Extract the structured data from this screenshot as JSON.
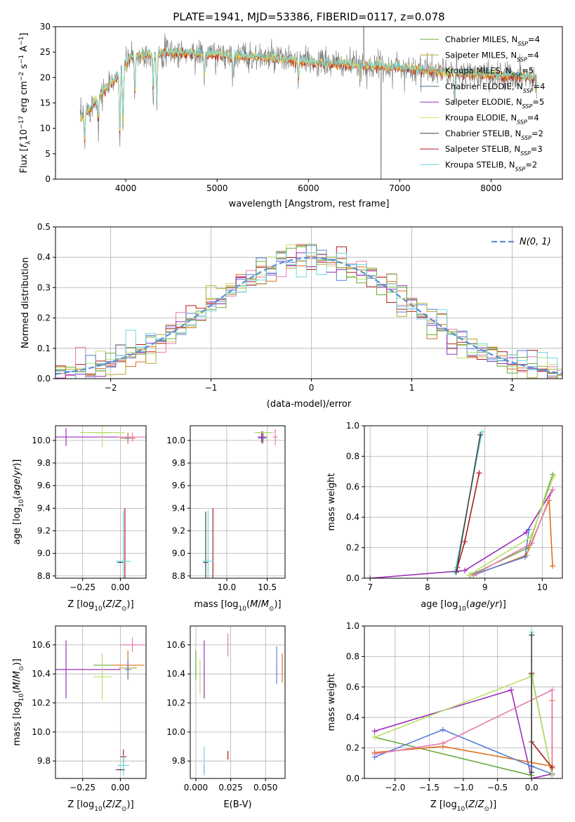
{
  "title": "PLATE=1941, MJD=53386, FIBERID=0117, z=0.078",
  "colors": {
    "c1": "#6aab3c",
    "c2": "#b5a832",
    "c3": "#e0701f",
    "c4": "#5a7fd6",
    "c5": "#9b30b8",
    "c6": "#e3e05e",
    "c7": "#444444",
    "c8": "#b01b1b",
    "c9": "#6fd8e0",
    "gray": "#808080",
    "normal": "#5b8fd6",
    "pink": "#e87ab0",
    "lime": "#b9e06a"
  },
  "chart_data": [
    {
      "id": "spectrum",
      "type": "line",
      "xlabel": "wavelength [Angstrom, rest frame]",
      "ylabel": "Flux [f_λ10^-17 erg cm^-2 s^-1 A^-1]",
      "xlim": [
        3230,
        8780
      ],
      "ylim": [
        0,
        30
      ],
      "xticks": [
        4000,
        5000,
        6000,
        7000,
        8000
      ],
      "yticks": [
        0,
        5,
        10,
        15,
        20,
        25,
        30
      ],
      "grid": false,
      "legend_position": "top-right",
      "legend": [
        {
          "label": "Chabrier MILES, N",
          "sub": "SSP",
          "suffix": "=4",
          "color": "#6aab3c"
        },
        {
          "label": "Salpeter MILES, N",
          "sub": "SSP",
          "suffix": "=4",
          "color": "#b5a832"
        },
        {
          "label": "Kroupa MILES, N",
          "sub": "SSP",
          "suffix": "=5",
          "color": "#e0701f"
        },
        {
          "label": "Chabrier ELODIE, N",
          "sub": "SSP",
          "suffix": "=4",
          "color": "#3f6f8a"
        },
        {
          "label": "Salpeter ELODIE, N",
          "sub": "SSP",
          "suffix": "=5",
          "color": "#9b30b8"
        },
        {
          "label": "Kroupa ELODIE, N",
          "sub": "SSP",
          "suffix": "=4",
          "color": "#e3e05e"
        },
        {
          "label": "Chabrier STELIB, N",
          "sub": "SSP",
          "suffix": "=2",
          "color": "#444444"
        },
        {
          "label": "Salpeter STELIB, N",
          "sub": "SSP",
          "suffix": "=3",
          "color": "#b01b1b"
        },
        {
          "label": "Kroupa STELIB, N",
          "sub": "SSP",
          "suffix": "=2",
          "color": "#6fd8e0"
        }
      ],
      "continuum": [
        [
          3500,
          12
        ],
        [
          3650,
          15
        ],
        [
          3800,
          18
        ],
        [
          3950,
          21
        ],
        [
          4050,
          24
        ],
        [
          4200,
          24.5
        ],
        [
          4500,
          25
        ],
        [
          5000,
          24.5
        ],
        [
          5500,
          24
        ],
        [
          6000,
          23
        ],
        [
          6500,
          22.5
        ],
        [
          7000,
          22
        ],
        [
          7500,
          21
        ],
        [
          8000,
          20.5
        ],
        [
          8500,
          20
        ]
      ],
      "absorption": [
        [
          3550,
          6
        ],
        [
          3700,
          5
        ],
        [
          3935,
          14
        ],
        [
          3970,
          12
        ],
        [
          4100,
          8
        ],
        [
          4300,
          8
        ],
        [
          4340,
          10
        ],
        [
          4861,
          5
        ],
        [
          5175,
          4
        ],
        [
          5890,
          4
        ],
        [
          6563,
          3
        ],
        [
          7600,
          6
        ],
        [
          8500,
          3
        ]
      ]
    },
    {
      "id": "residuals",
      "type": "histogram",
      "xlabel": "(data-model)/error",
      "ylabel": "Normed distribution",
      "xlim": [
        -2.55,
        2.5
      ],
      "ylim": [
        0,
        0.5
      ],
      "xticks": [
        -2,
        -1,
        0,
        1,
        2
      ],
      "yticks": [
        0.0,
        0.1,
        0.2,
        0.3,
        0.4,
        0.5
      ],
      "grid": true,
      "legend_position": "top-right",
      "normal_label": "N(0, 1)",
      "bin_width": 0.1,
      "bin_start": -2.55
    },
    {
      "id": "age-vs-Z",
      "type": "scatter",
      "xlabel": "Z [log10(Z/Z⊙)]",
      "ylabel": "age  [log10(age/yr)]",
      "xlim": [
        -0.43,
        0.17
      ],
      "ylim": [
        8.78,
        10.13
      ],
      "xticks": [
        -0.25,
        0.0
      ],
      "yticks": [
        8.8,
        9.0,
        9.2,
        9.4,
        9.6,
        9.8,
        10.0
      ],
      "grid": true,
      "points": [
        {
          "x": -0.12,
          "y": 10.07,
          "xerr": 0.06,
          "yerr": 0.0,
          "color": "#6aab3c"
        },
        {
          "x": 0.05,
          "y": 10.03,
          "xerr": 0.06,
          "yerr": 0.03,
          "color": "#b5a832"
        },
        {
          "x": 0.05,
          "y": 10.02,
          "xerr": 0.05,
          "yerr": 0.05,
          "color": "#e0701f"
        },
        {
          "x": 0.05,
          "y": 10.02,
          "xerr": 0.02,
          "yerr": 0.0,
          "color": "#5a7fd6"
        },
        {
          "x": -0.36,
          "y": 10.03,
          "xerr": 0.36,
          "yerr": 0.08,
          "color": "#9b30b8"
        },
        {
          "x": -0.12,
          "y": 10.07,
          "xerr": 0.15,
          "yerr": 0.13,
          "color": "#b9e06a"
        },
        {
          "x": 0.0,
          "y": 8.92,
          "xerr": 0.02,
          "yerr": 0.0,
          "color": "#444444"
        },
        {
          "x": 0.03,
          "y": 8.87,
          "xerr": 0.0,
          "yerr": 0.53,
          "color": "#b01b1b"
        },
        {
          "x": 0.02,
          "y": 8.93,
          "xerr": 0.05,
          "yerr": 0.45,
          "color": "#6fd8e0"
        },
        {
          "x": 0.08,
          "y": 10.03,
          "xerr": 0.1,
          "yerr": 0.04,
          "color": "#e87ab0"
        }
      ]
    },
    {
      "id": "age-vs-mass",
      "type": "scatter",
      "xlabel": "mass [log10(M/M⊙)]",
      "ylabel": "",
      "xlim": [
        9.55,
        10.72
      ],
      "ylim": [
        8.78,
        10.13
      ],
      "xticks": [
        10.0,
        10.5
      ],
      "yticks": [
        8.8,
        9.0,
        9.2,
        9.4,
        9.6,
        9.8,
        10.0
      ],
      "grid": true,
      "points": [
        {
          "x": 10.46,
          "y": 10.07,
          "xerr": 0.1,
          "yerr": 0.0,
          "color": "#6aab3c"
        },
        {
          "x": 10.44,
          "y": 10.03,
          "xerr": 0.05,
          "yerr": 0.05,
          "color": "#b5a832"
        },
        {
          "x": 10.45,
          "y": 10.03,
          "xerr": 0.05,
          "yerr": 0.05,
          "color": "#e0701f"
        },
        {
          "x": 10.44,
          "y": 10.02,
          "xerr": 0.05,
          "yerr": 0.05,
          "color": "#5a7fd6"
        },
        {
          "x": 10.43,
          "y": 10.03,
          "xerr": 0.05,
          "yerr": 0.05,
          "color": "#9b30b8"
        },
        {
          "x": 10.46,
          "y": 10.07,
          "xerr": 0.12,
          "yerr": 0.0,
          "color": "#b9e06a"
        },
        {
          "x": 9.74,
          "y": 8.92,
          "xerr": 0.03,
          "yerr": 0.45,
          "color": "#444444"
        },
        {
          "x": 9.83,
          "y": 8.87,
          "xerr": 0.0,
          "yerr": 0.53,
          "color": "#b01b1b"
        },
        {
          "x": 9.77,
          "y": 8.93,
          "xerr": 0.07,
          "yerr": 0.45,
          "color": "#6fd8e0"
        },
        {
          "x": 10.6,
          "y": 10.03,
          "xerr": 0.03,
          "yerr": 0.07,
          "color": "#e87ab0"
        }
      ]
    },
    {
      "id": "weight-vs-age",
      "type": "line",
      "xlabel": "age  [log10(age/yr)]",
      "ylabel": "mass weight",
      "xlim": [
        6.9,
        10.35
      ],
      "ylim": [
        0,
        1.0
      ],
      "xticks": [
        7,
        8,
        9,
        10
      ],
      "yticks": [
        0.0,
        0.2,
        0.4,
        0.6,
        0.8,
        1.0
      ],
      "grid": true,
      "series": [
        {
          "color": "#9b30b8",
          "points": [
            [
              7.0,
              0.0
            ],
            [
              8.65,
              0.05
            ],
            [
              9.72,
              0.3
            ],
            [
              10.18,
              0.58
            ]
          ]
        },
        {
          "color": "#6aab3c",
          "points": [
            [
              8.75,
              0.02
            ],
            [
              9.75,
              0.2
            ],
            [
              10.18,
              0.68
            ]
          ]
        },
        {
          "color": "#e0701f",
          "points": [
            [
              8.8,
              0.02
            ],
            [
              9.72,
              0.15
            ],
            [
              10.12,
              0.51
            ],
            [
              10.18,
              0.08
            ]
          ]
        },
        {
          "color": "#5a7fd6",
          "points": [
            [
              8.85,
              0.03
            ],
            [
              9.7,
              0.14
            ],
            [
              9.77,
              0.32
            ]
          ]
        },
        {
          "color": "#e87ab0",
          "points": [
            [
              8.8,
              0.02
            ],
            [
              9.82,
              0.23
            ],
            [
              10.18,
              0.58
            ]
          ]
        },
        {
          "color": "#b9e06a",
          "points": [
            [
              8.72,
              0.02
            ],
            [
              9.8,
              0.27
            ],
            [
              10.2,
              0.67
            ]
          ]
        },
        {
          "color": "#b01b1b",
          "points": [
            [
              8.52,
              0.07
            ],
            [
              8.65,
              0.24
            ],
            [
              8.9,
              0.69
            ]
          ]
        },
        {
          "color": "#6fd8e0",
          "points": [
            [
              8.48,
              0.04
            ],
            [
              8.95,
              0.96
            ]
          ]
        },
        {
          "color": "#444444",
          "points": [
            [
              8.5,
              0.04
            ],
            [
              8.92,
              0.94
            ]
          ]
        }
      ]
    },
    {
      "id": "mass-vs-Z",
      "type": "scatter",
      "xlabel": "Z [log10(Z/Z⊙)]",
      "ylabel": "mass [log10(M/M⊙)]",
      "xlim": [
        -0.43,
        0.17
      ],
      "ylim": [
        9.68,
        10.73
      ],
      "xticks": [
        -0.25,
        0.0
      ],
      "yticks": [
        9.8,
        10.0,
        10.2,
        10.4,
        10.6
      ],
      "grid": true,
      "points": [
        {
          "x": -0.12,
          "y": 10.46,
          "xerr": 0.06,
          "yerr": 0.0,
          "color": "#6aab3c"
        },
        {
          "x": 0.05,
          "y": 10.44,
          "xerr": 0.06,
          "yerr": 0.06,
          "color": "#b5a832"
        },
        {
          "x": 0.05,
          "y": 10.46,
          "xerr": 0.11,
          "yerr": 0.1,
          "color": "#e0701f"
        },
        {
          "x": 0.05,
          "y": 10.43,
          "xerr": 0.02,
          "yerr": 0.06,
          "color": "#5a7fd6"
        },
        {
          "x": -0.36,
          "y": 10.43,
          "xerr": 0.36,
          "yerr": 0.2,
          "color": "#9b30b8"
        },
        {
          "x": -0.12,
          "y": 10.38,
          "xerr": 0.06,
          "yerr": 0.16,
          "color": "#b9e06a"
        },
        {
          "x": 0.0,
          "y": 9.74,
          "xerr": 0.03,
          "yerr": 0.0,
          "color": "#444444"
        },
        {
          "x": 0.02,
          "y": 9.83,
          "xerr": 0.02,
          "yerr": 0.05,
          "color": "#b01b1b"
        },
        {
          "x": 0.02,
          "y": 9.77,
          "xerr": 0.04,
          "yerr": 0.07,
          "color": "#6fd8e0"
        },
        {
          "x": 0.08,
          "y": 10.6,
          "xerr": 0.08,
          "yerr": 0.05,
          "color": "#e87ab0"
        }
      ]
    },
    {
      "id": "mass-vs-ebv",
      "type": "scatter",
      "xlabel": "E(B-V)",
      "ylabel": "",
      "xlim": [
        -0.004,
        0.064
      ],
      "ylim": [
        9.68,
        10.73
      ],
      "xticks": [
        0.0,
        0.025,
        0.05
      ],
      "yticks": [
        9.8,
        10.0,
        10.2,
        10.4,
        10.6
      ],
      "xtick_labels": [
        "0.000",
        "0.025",
        "0.050"
      ],
      "grid": true,
      "points": [
        {
          "x": 0.0,
          "y": 10.46,
          "xerr": 0.0,
          "yerr": 0.1,
          "color": "#6aab3c"
        },
        {
          "x": 0.062,
          "y": 10.44,
          "xerr": 0.0,
          "yerr": 0.1,
          "color": "#e0701f"
        },
        {
          "x": 0.058,
          "y": 10.46,
          "xerr": 0.0,
          "yerr": 0.13,
          "color": "#5a7fd6"
        },
        {
          "x": 0.006,
          "y": 10.43,
          "xerr": 0.0,
          "yerr": 0.2,
          "color": "#9b30b8"
        },
        {
          "x": 0.003,
          "y": 10.38,
          "xerr": 0.0,
          "yerr": 0.12,
          "color": "#b9e06a"
        },
        {
          "x": 0.006,
          "y": 9.74,
          "xerr": 0.0,
          "yerr": 0.03,
          "color": "#444444"
        },
        {
          "x": 0.023,
          "y": 9.84,
          "xerr": 0.0,
          "yerr": 0.03,
          "color": "#b01b1b"
        },
        {
          "x": 0.006,
          "y": 9.8,
          "xerr": 0.0,
          "yerr": 0.1,
          "color": "#6fd8e0"
        },
        {
          "x": 0.023,
          "y": 10.6,
          "xerr": 0.0,
          "yerr": 0.08,
          "color": "#e87ab0"
        }
      ]
    },
    {
      "id": "weight-vs-Z",
      "type": "line",
      "xlabel": "Z [log10(Z/Z⊙)]",
      "ylabel": "mass weight",
      "xlim": [
        -2.45,
        0.45
      ],
      "ylim": [
        0,
        1.0
      ],
      "xticks": [
        -2.0,
        -1.5,
        -1.0,
        -0.5,
        0.0
      ],
      "yticks": [
        0.0,
        0.2,
        0.4,
        0.6,
        0.8,
        1.0
      ],
      "grid": true,
      "series": [
        {
          "color": "#9b30b8",
          "points": [
            [
              -2.3,
              0.31
            ],
            [
              -0.3,
              0.58
            ],
            [
              0.0,
              0.0
            ],
            [
              0.3,
              0.03
            ]
          ]
        },
        {
          "color": "#6aab3c",
          "points": [
            [
              -2.3,
              0.27
            ],
            [
              0.0,
              0.02
            ],
            [
              0.0,
              0.68
            ],
            [
              0.3,
              0.02
            ]
          ]
        },
        {
          "color": "#e0701f",
          "points": [
            [
              -2.3,
              0.17
            ],
            [
              -1.3,
              0.21
            ],
            [
              0.3,
              0.08
            ],
            [
              0.3,
              0.51
            ]
          ]
        },
        {
          "color": "#5a7fd6",
          "points": [
            [
              -2.3,
              0.14
            ],
            [
              -1.3,
              0.32
            ],
            [
              0.0,
              0.08
            ],
            [
              0.3,
              0.03
            ]
          ]
        },
        {
          "color": "#e87ab0",
          "points": [
            [
              -2.3,
              0.16
            ],
            [
              -1.3,
              0.23
            ],
            [
              0.3,
              0.58
            ],
            [
              0.3,
              0.02
            ]
          ]
        },
        {
          "color": "#b9e06a",
          "points": [
            [
              -2.3,
              0.27
            ],
            [
              0.0,
              0.67
            ],
            [
              0.3,
              0.02
            ]
          ]
        },
        {
          "color": "#b01b1b",
          "points": [
            [
              0.0,
              0.69
            ],
            [
              0.0,
              0.24
            ],
            [
              0.3,
              0.07
            ]
          ]
        },
        {
          "color": "#6fd8e0",
          "points": [
            [
              0.0,
              0.96
            ],
            [
              0.0,
              0.04
            ]
          ]
        },
        {
          "color": "#444444",
          "points": [
            [
              0.0,
              0.94
            ],
            [
              0.0,
              0.04
            ]
          ]
        }
      ]
    }
  ]
}
